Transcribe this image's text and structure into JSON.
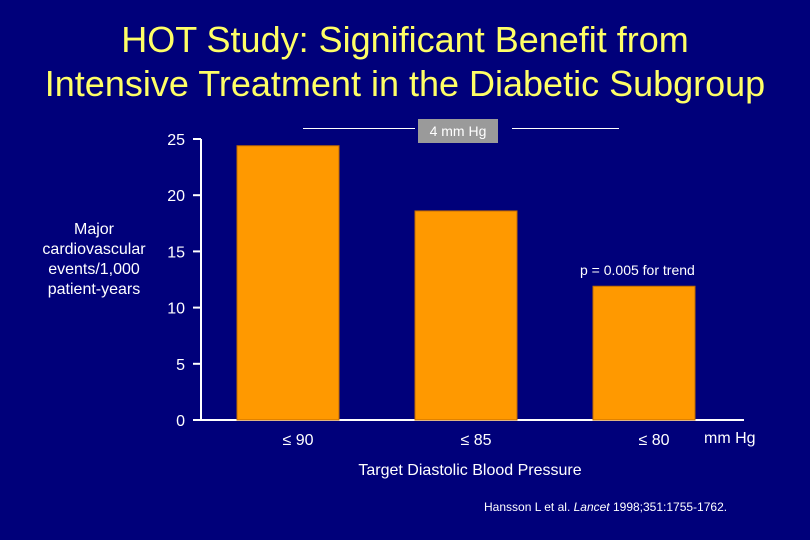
{
  "title_line1": "HOT Study:  Significant Benefit from",
  "title_line2": "Intensive Treatment in the Diabetic Subgroup",
  "ylabel_lines": [
    "Major",
    "cardiovascular",
    "events/1,000",
    "patient-years"
  ],
  "xlabel": "Target Diastolic Blood Pressure",
  "x_unit": "mm Hg",
  "annotation": "4 mm Hg",
  "p_trend": "p = 0.005 for trend",
  "citation": {
    "pre": "Hansson L et al.  ",
    "journal": "Lancet",
    "post": " 1998;351:1755-1762."
  },
  "colors": {
    "background": "#00007a",
    "bar": "#ff9900",
    "title": "#ffff66",
    "text": "#ffffff"
  },
  "chart_data": {
    "type": "bar",
    "title": "HOT Study:  Significant Benefit from Intensive Treatment in the Diabetic Subgroup",
    "categories": [
      "≤ 90",
      "≤ 85",
      "≤ 80"
    ],
    "values": [
      24.4,
      18.6,
      11.9
    ],
    "xlabel": "Target Diastolic Blood Pressure",
    "ylabel": "Major cardiovascular events/1,000 patient-years",
    "ylim": [
      0,
      25
    ],
    "yticks": [
      0,
      5,
      10,
      15,
      20,
      25
    ],
    "grid": false,
    "annotations": [
      "4 mm Hg",
      "p = 0.005 for trend"
    ]
  }
}
